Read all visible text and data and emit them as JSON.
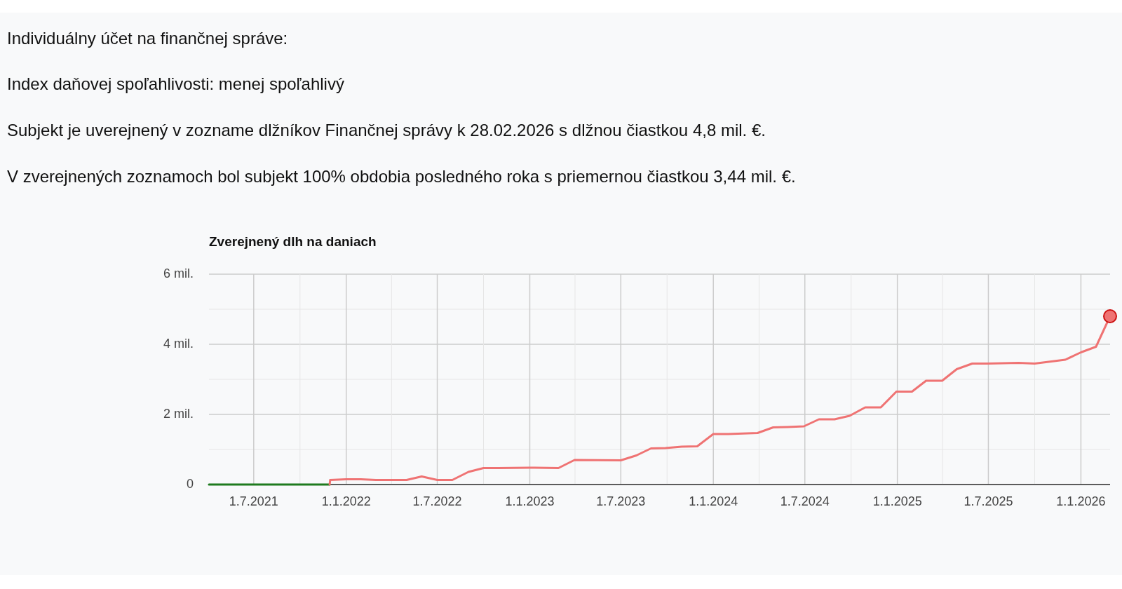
{
  "chart_data": {
    "type": "line",
    "title": "Zverejnený dlh na daniach",
    "annotations": [
      "Individuálny účet na finančnej správe:",
      "Index daňovej spoľahlivosti: menej spoľahlivý",
      "Subjekt je uverejnený v zozname dlžníkov Finančnej správy k 28.02.2026 s dlžnou čiastkou 4,8 mil. €.",
      "V zverejnených zoznamoch bol subjekt 100% obdobia posledného roka s priemernou čiastkou 3,44 mil. €."
    ],
    "series": [
      {
        "color": "#1e7b1e",
        "x": [
          "2021-04-03",
          "2021-11-29"
        ],
        "values": [
          0,
          0
        ]
      },
      {
        "color": "#ef7373",
        "x": [
          "2021-11-29",
          "2021-11-30",
          "2022-01-01",
          "2022-01-30",
          "2022-03-01",
          "2022-05-01",
          "2022-05-31",
          "2022-07-01",
          "2022-07-31",
          "2022-09-01",
          "2022-10-01",
          "2022-10-30",
          "2023-01-01",
          "2023-02-27",
          "2023-03-31",
          "2023-07-01",
          "2023-08-01",
          "2023-08-30",
          "2023-09-28",
          "2023-10-30",
          "2023-11-30",
          "2024-01-01",
          "2024-01-31",
          "2024-03-29",
          "2024-04-29",
          "2024-05-28",
          "2024-06-29",
          "2024-07-29",
          "2024-08-29",
          "2024-09-28",
          "2024-10-29",
          "2024-11-29",
          "2024-12-30",
          "2025-01-30",
          "2025-02-27",
          "2025-03-31",
          "2025-04-29",
          "2025-05-30",
          "2025-06-30",
          "2025-08-30",
          "2025-10-01",
          "2025-12-01",
          "2026-01-01",
          "2026-01-31",
          "2026-02-28"
        ],
        "values": [
          0,
          0.13,
          0.15,
          0.15,
          0.13,
          0.13,
          0.23,
          0.13,
          0.13,
          0.36,
          0.47,
          0.47,
          0.48,
          0.47,
          0.7,
          0.69,
          0.83,
          1.03,
          1.04,
          1.08,
          1.09,
          1.44,
          1.44,
          1.47,
          1.63,
          1.64,
          1.66,
          1.86,
          1.86,
          1.96,
          2.2,
          2.2,
          2.65,
          2.65,
          2.96,
          2.96,
          3.29,
          3.45,
          3.45,
          3.47,
          3.45,
          3.56,
          3.77,
          3.93,
          4.8
        ]
      },
      {
        "type": "scatter",
        "color": "#ef7373",
        "marker": "circle",
        "x": [
          "2026-02-28"
        ],
        "values": [
          4.8
        ]
      }
    ],
    "xlim": [
      "2021-04-03",
      "2026-02-28"
    ],
    "xticks": [
      {
        "value": "2021-07-01",
        "label": "1.7.2021"
      },
      {
        "value": "2021-10-01",
        "label": null
      },
      {
        "value": "2022-01-01",
        "label": "1.1.2022"
      },
      {
        "value": "2022-04-01",
        "label": null
      },
      {
        "value": "2022-07-01",
        "label": "1.7.2022"
      },
      {
        "value": "2022-10-01",
        "label": null
      },
      {
        "value": "2023-01-01",
        "label": "1.1.2023"
      },
      {
        "value": "2023-04-01",
        "label": null
      },
      {
        "value": "2023-07-01",
        "label": "1.7.2023"
      },
      {
        "value": "2023-10-01",
        "label": null
      },
      {
        "value": "2024-01-01",
        "label": "1.1.2024"
      },
      {
        "value": "2024-04-01",
        "label": null
      },
      {
        "value": "2024-07-01",
        "label": "1.7.2024"
      },
      {
        "value": "2024-10-01",
        "label": null
      },
      {
        "value": "2025-01-01",
        "label": "1.1.2025"
      },
      {
        "value": "2025-04-01",
        "label": null
      },
      {
        "value": "2025-07-01",
        "label": "1.7.2025"
      },
      {
        "value": "2025-10-01",
        "label": null
      },
      {
        "value": "2026-01-01",
        "label": "1.1.2026"
      }
    ],
    "ylim": [
      0,
      6
    ],
    "yticks": [
      0,
      {
        "value": 1,
        "label": null
      },
      {
        "value": 2,
        "label": "2 mil."
      },
      {
        "value": 3,
        "label": null
      },
      {
        "value": 4,
        "label": "4 mil."
      },
      {
        "value": 5,
        "label": null
      },
      {
        "value": 6,
        "label": "6 mil."
      }
    ],
    "grid": true,
    "marker": "none",
    "line_style": "solid"
  }
}
